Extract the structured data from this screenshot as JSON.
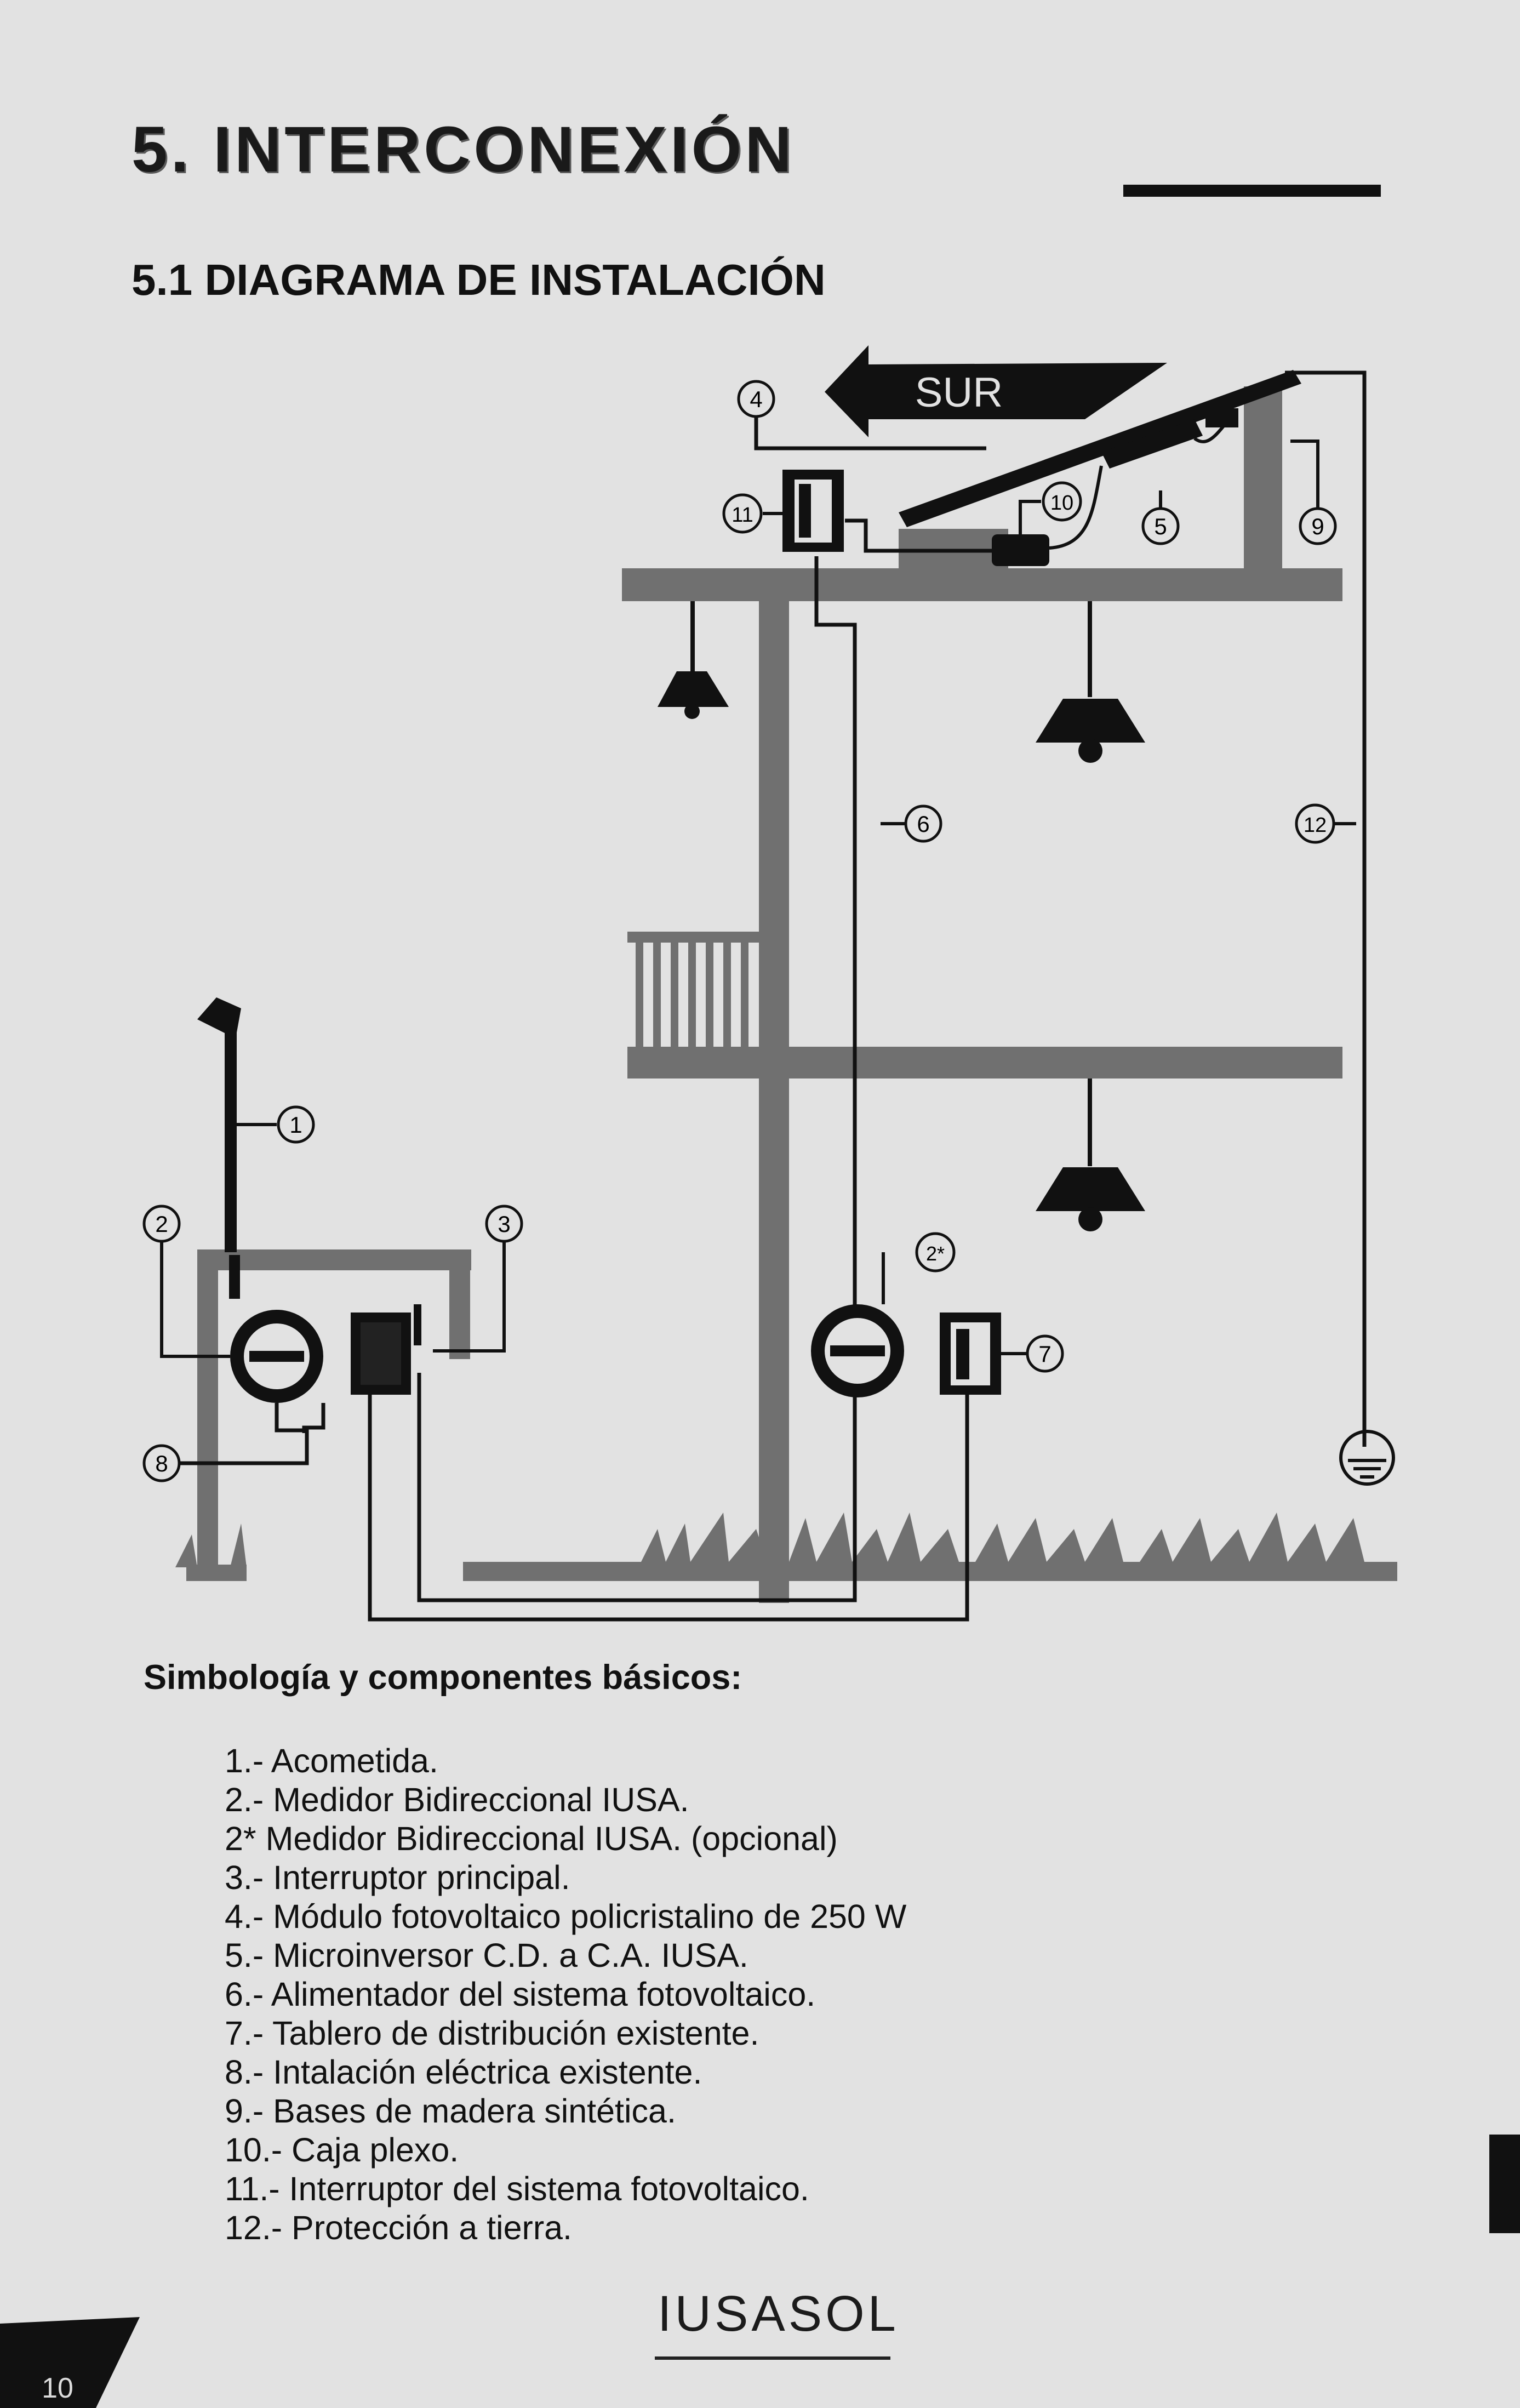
{
  "header": {
    "section_title": "5. INTERCONEXIÓN",
    "subtitle": "5.1 DIAGRAMA DE INSTALACIÓN"
  },
  "diagram": {
    "direction_label": "SUR",
    "callouts": [
      "1",
      "2",
      "2*",
      "3",
      "4",
      "5",
      "6",
      "7",
      "8",
      "9",
      "10",
      "11",
      "12"
    ],
    "colors": {
      "structure": "#707070",
      "lines": "#111111",
      "paper": "#e2e2e2"
    }
  },
  "legend": {
    "title": "Simbología y componentes básicos:",
    "items": [
      "1.- Acometida.",
      "2.- Medidor Bidireccional IUSA.",
      "2* Medidor Bidireccional IUSA. (opcional)",
      "3.- Interruptor principal.",
      "4.- Módulo fotovoltaico policristalino de 250 W",
      "5.- Microinversor C.D. a C.A. IUSA.",
      "6.- Alimentador del sistema fotovoltaico.",
      "7.- Tablero de distribución existente.",
      "8.- Intalación eléctrica existente.",
      "9.- Bases de madera sintética.",
      "10.- Caja plexo.",
      "11.- Interruptor del sistema fotovoltaico.",
      "12.- Protección a tierra."
    ]
  },
  "footer": {
    "brand": "IUSASOL",
    "page_number": "10"
  }
}
